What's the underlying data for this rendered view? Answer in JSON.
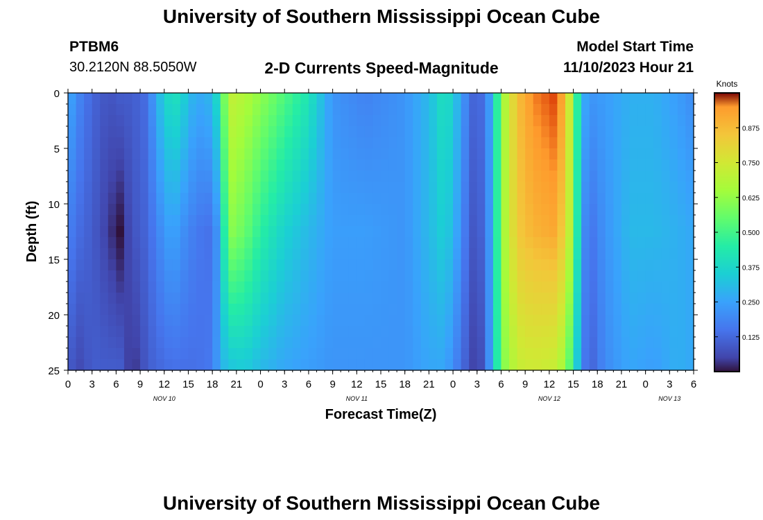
{
  "title": "University of Southern Mississippi Ocean Cube",
  "footer_title": "University of Southern Mississippi Ocean Cube",
  "station": {
    "id": "PTBM6",
    "coords": "30.2120N  88.5050W"
  },
  "subtitle": "2-D Currents Speed-Magnitude",
  "model_start": {
    "label": "Model Start Time",
    "value": "11/10/2023 Hour 21"
  },
  "chart_data": {
    "type": "heatmap",
    "title": "2-D Currents Speed-Magnitude",
    "xlabel": "Forecast Time(Z)",
    "ylabel": "Depth (ft)",
    "xlim": [
      0,
      78
    ],
    "ylim": [
      0,
      25
    ],
    "y_ticks": [
      "0",
      "5",
      "10",
      "15",
      "20",
      "25"
    ],
    "x_ticks": [
      "0",
      "3",
      "6",
      "9",
      "12",
      "15",
      "18",
      "21",
      "0",
      "3",
      "6",
      "9",
      "12",
      "15",
      "18",
      "21",
      "0",
      "3",
      "6",
      "9",
      "12",
      "15",
      "18",
      "21",
      "0",
      "3",
      "6"
    ],
    "date_labels": [
      {
        "label": "NOV 10",
        "hour": 12
      },
      {
        "label": "NOV 11",
        "hour": 36
      },
      {
        "label": "NOV 12",
        "hour": 60
      },
      {
        "label": "NOV 13",
        "hour": 75
      }
    ],
    "colorbar": {
      "label": "Knots",
      "min": 0.0,
      "max": 1.0,
      "ticks": [
        "0.125",
        "0.250",
        "0.375",
        "0.500",
        "0.625",
        "0.750",
        "0.875"
      ]
    },
    "profile_columns": [
      {
        "hour": 0,
        "top": 0.28,
        "mid": 0.18,
        "bot": 0.12
      },
      {
        "hour": 1,
        "top": 0.2,
        "mid": 0.14,
        "bot": 0.05
      },
      {
        "hour": 3,
        "top": 0.12,
        "mid": 0.1,
        "bot": 0.1
      },
      {
        "hour": 5,
        "top": 0.08,
        "mid": 0.04,
        "bot": 0.1
      },
      {
        "hour": 6.5,
        "top": 0.1,
        "mid": 0.0,
        "bot": 0.1
      },
      {
        "hour": 8,
        "top": 0.1,
        "mid": 0.08,
        "bot": 0.02
      },
      {
        "hour": 10,
        "top": 0.14,
        "mid": 0.12,
        "bot": 0.1
      },
      {
        "hour": 11,
        "top": 0.28,
        "mid": 0.18,
        "bot": 0.12
      },
      {
        "hour": 13,
        "top": 0.42,
        "mid": 0.26,
        "bot": 0.14
      },
      {
        "hour": 14,
        "top": 0.38,
        "mid": 0.22,
        "bot": 0.14
      },
      {
        "hour": 16,
        "top": 0.26,
        "mid": 0.16,
        "bot": 0.14
      },
      {
        "hour": 18,
        "top": 0.3,
        "mid": 0.14,
        "bot": 0.16
      },
      {
        "hour": 19,
        "top": 0.45,
        "mid": 0.28,
        "bot": 0.28
      },
      {
        "hour": 20,
        "top": 0.72,
        "mid": 0.62,
        "bot": 0.32
      },
      {
        "hour": 22,
        "top": 0.68,
        "mid": 0.56,
        "bot": 0.34
      },
      {
        "hour": 24,
        "top": 0.62,
        "mid": 0.46,
        "bot": 0.3
      },
      {
        "hour": 27,
        "top": 0.52,
        "mid": 0.36,
        "bot": 0.26
      },
      {
        "hour": 30,
        "top": 0.42,
        "mid": 0.3,
        "bot": 0.24
      },
      {
        "hour": 33,
        "top": 0.22,
        "mid": 0.24,
        "bot": 0.22
      },
      {
        "hour": 37,
        "top": 0.18,
        "mid": 0.24,
        "bot": 0.22
      },
      {
        "hour": 42,
        "top": 0.22,
        "mid": 0.22,
        "bot": 0.22
      },
      {
        "hour": 45,
        "top": 0.3,
        "mid": 0.3,
        "bot": 0.26
      },
      {
        "hour": 47,
        "top": 0.42,
        "mid": 0.36,
        "bot": 0.26
      },
      {
        "hour": 49,
        "top": 0.26,
        "mid": 0.22,
        "bot": 0.14
      },
      {
        "hour": 50,
        "top": 0.14,
        "mid": 0.1,
        "bot": 0.08
      },
      {
        "hour": 51,
        "top": 0.1,
        "mid": 0.08,
        "bot": 0.02
      },
      {
        "hour": 52,
        "top": 0.16,
        "mid": 0.14,
        "bot": 0.12
      },
      {
        "hour": 53,
        "top": 0.3,
        "mid": 0.3,
        "bot": 0.3
      },
      {
        "hour": 54,
        "top": 0.62,
        "mid": 0.62,
        "bot": 0.58
      },
      {
        "hour": 56,
        "top": 0.86,
        "mid": 0.84,
        "bot": 0.72
      },
      {
        "hour": 58,
        "top": 0.93,
        "mid": 0.88,
        "bot": 0.74
      },
      {
        "hour": 61,
        "top": 0.96,
        "mid": 0.9,
        "bot": 0.72
      },
      {
        "hour": 62,
        "top": 0.86,
        "mid": 0.8,
        "bot": 0.62
      },
      {
        "hour": 63,
        "top": 0.62,
        "mid": 0.62,
        "bot": 0.46
      },
      {
        "hour": 64,
        "top": 0.3,
        "mid": 0.24,
        "bot": 0.2
      },
      {
        "hour": 65,
        "top": 0.22,
        "mid": 0.14,
        "bot": 0.1
      },
      {
        "hour": 67,
        "top": 0.24,
        "mid": 0.22,
        "bot": 0.2
      },
      {
        "hour": 70,
        "top": 0.28,
        "mid": 0.3,
        "bot": 0.26
      },
      {
        "hour": 73,
        "top": 0.28,
        "mid": 0.3,
        "bot": 0.24
      },
      {
        "hour": 76,
        "top": 0.24,
        "mid": 0.28,
        "bot": 0.28
      },
      {
        "hour": 78,
        "top": 0.2,
        "mid": 0.26,
        "bot": 0.26
      }
    ]
  }
}
